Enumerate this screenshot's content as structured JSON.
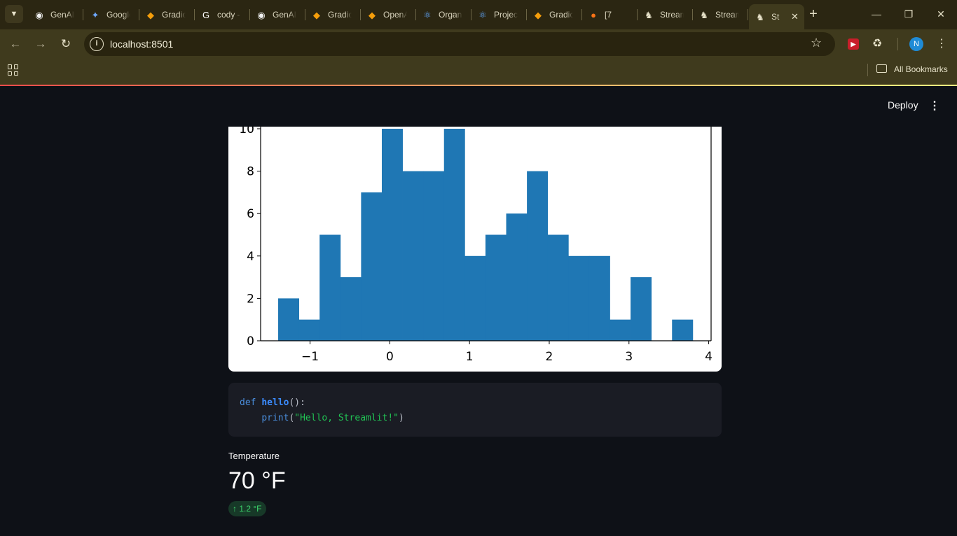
{
  "browser": {
    "tabs": [
      {
        "label": "GenAI",
        "icon": "github-icon",
        "x": 48
      },
      {
        "label": "Google",
        "icon": "gemini-icon",
        "x": 128
      },
      {
        "label": "Gradio",
        "icon": "gradio-icon",
        "x": 207
      },
      {
        "label": "cody -",
        "icon": "google-icon",
        "x": 286
      },
      {
        "label": "GenAI",
        "icon": "github-icon",
        "x": 365
      },
      {
        "label": "Gradio",
        "icon": "gradio-icon",
        "x": 444
      },
      {
        "label": "OpenAI",
        "icon": "gradio-icon",
        "x": 523
      },
      {
        "label": "Organ",
        "icon": "react-icon",
        "x": 602
      },
      {
        "label": "Projec",
        "icon": "react-icon",
        "x": 681
      },
      {
        "label": "Gradio",
        "icon": "gradio-icon",
        "x": 760
      },
      {
        "label": "[7",
        "icon": "fire-icon",
        "x": 839
      },
      {
        "label": "Stream",
        "icon": "streamlit-icon",
        "x": 918
      },
      {
        "label": "Stream",
        "icon": "streamlit-icon",
        "x": 997
      }
    ],
    "active_tab": {
      "label": "St",
      "icon": "streamlit-icon"
    },
    "url": "localhost:8501",
    "profile_initial": "N",
    "bookmarks_label": "All Bookmarks",
    "colors": {
      "frame": "#2b2612",
      "toolbar": "#3f3a1d"
    }
  },
  "app": {
    "deploy_label": "Deploy",
    "code": {
      "line1": {
        "kw": "def",
        "fn": "hello",
        "rest": "():"
      },
      "line2": {
        "indent": "    ",
        "bi": "print",
        "open": "(",
        "str": "\"Hello, Streamlit!\"",
        "close": ")"
      }
    },
    "metric": {
      "label": "Temperature",
      "value": "70 °F",
      "delta": "1.2 °F",
      "delta_icon": "arrow-up-icon",
      "delta_color": "#3dd56d"
    }
  },
  "chart_data": {
    "type": "bar",
    "kind": "histogram",
    "bin_start": -1.4,
    "bin_width": 0.26,
    "values": [
      2,
      1,
      5,
      3,
      7,
      10,
      8,
      8,
      10,
      4,
      5,
      6,
      8,
      5,
      4,
      4,
      1,
      3,
      0,
      1
    ],
    "x_ticks": [
      "−1",
      "0",
      "1",
      "2",
      "3",
      "4"
    ],
    "x_tick_values": [
      -1,
      0,
      1,
      2,
      3,
      4
    ],
    "y_ticks": [
      "0",
      "2",
      "4",
      "6",
      "8",
      "10"
    ],
    "y_tick_values": [
      0,
      2,
      4,
      6,
      8,
      10
    ],
    "xlim": [
      -1.62,
      4.03
    ],
    "ylim": [
      0,
      10
    ],
    "color": "#1f77b4",
    "title": "",
    "xlabel": "",
    "ylabel": ""
  }
}
